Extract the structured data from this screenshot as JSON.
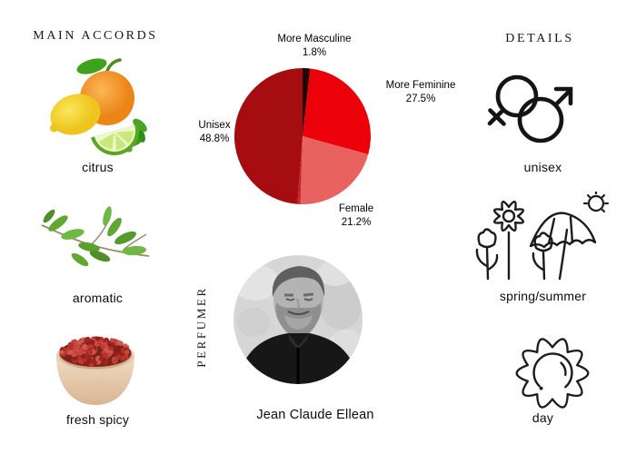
{
  "page": {
    "background": "#ffffff"
  },
  "headers": {
    "main_accords": "MAIN ACCORDS",
    "details": "DETAILS",
    "perfumer": "PERFUMER"
  },
  "accords": [
    {
      "label": "citrus",
      "icon": "citrus-fruits-image"
    },
    {
      "label": "aromatic",
      "icon": "herb-sprig-image"
    },
    {
      "label": "fresh spicy",
      "icon": "peppercorn-bowl-image"
    }
  ],
  "details": [
    {
      "label": "unisex",
      "icon": "unisex-gender-icon"
    },
    {
      "label": "spring/summer",
      "icon": "flowers-umbrella-sun-icon"
    },
    {
      "label": "day",
      "icon": "sun-icon"
    }
  ],
  "perfumer": {
    "name": "Jean Claude Ellean"
  },
  "chart_data": {
    "type": "pie",
    "title": "",
    "start_angle_deg": 0,
    "direction": "clockwise",
    "legend_position": "outside-labels",
    "slices": [
      {
        "label": "More Masculine",
        "value": 1.8,
        "pct": "1.8%",
        "color": "#250304"
      },
      {
        "label": "More Feminine",
        "value": 27.5,
        "pct": "27.5%",
        "color": "#ec0009"
      },
      {
        "label": "Female",
        "value": 21.2,
        "pct": "21.2%",
        "color": "#e8635f"
      },
      {
        "label": "",
        "value": 0.7,
        "pct": "",
        "color": "#c2272d"
      },
      {
        "label": "Unisex",
        "value": 48.8,
        "pct": "48.8%",
        "color": "#a60d10"
      }
    ]
  }
}
